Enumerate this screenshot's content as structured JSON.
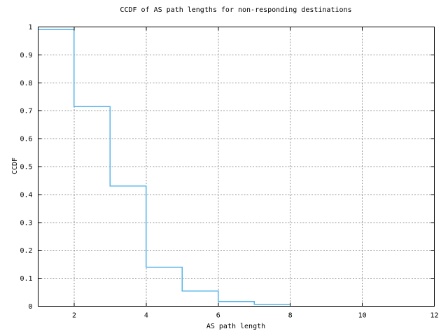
{
  "window": {
    "background": "#ffffff"
  },
  "chart_data": {
    "type": "line",
    "style": "step",
    "title": "CCDF of AS path lengths for non-responding destinations",
    "xlabel": "AS path length",
    "ylabel": "CCDF",
    "xlim": [
      1,
      12
    ],
    "ylim": [
      0,
      1
    ],
    "x_ticks": [
      2,
      4,
      6,
      8,
      10,
      12
    ],
    "x_tick_labels": [
      "2",
      "4",
      "6",
      "8",
      "10",
      "12"
    ],
    "y_ticks": [
      0,
      0.1,
      0.2,
      0.3,
      0.4,
      0.5,
      0.6,
      0.7,
      0.8,
      0.9,
      1
    ],
    "y_tick_labels": [
      "0",
      "0.1",
      "0.2",
      "0.3",
      "0.4",
      "0.5",
      "0.6",
      "0.7",
      "0.8",
      "0.9",
      "1"
    ],
    "grid": true,
    "legend": "none",
    "series": [
      {
        "name": "ccdf-of-as-path-length",
        "color": "#56b4e9",
        "steps": [
          {
            "x_start": 1,
            "x_end": 2,
            "y": 0.99
          },
          {
            "x_start": 2,
            "x_end": 3,
            "y": 0.715
          },
          {
            "x_start": 3,
            "x_end": 4,
            "y": 0.43
          },
          {
            "x_start": 4,
            "x_end": 5,
            "y": 0.14
          },
          {
            "x_start": 5,
            "x_end": 6,
            "y": 0.055
          },
          {
            "x_start": 6,
            "x_end": 7,
            "y": 0.017
          },
          {
            "x_start": 7,
            "x_end": 8,
            "y": 0.007
          }
        ]
      }
    ],
    "colors": {
      "axis": "#000000",
      "grid": "#989898",
      "text": "#000000",
      "background": "#ffffff"
    }
  }
}
